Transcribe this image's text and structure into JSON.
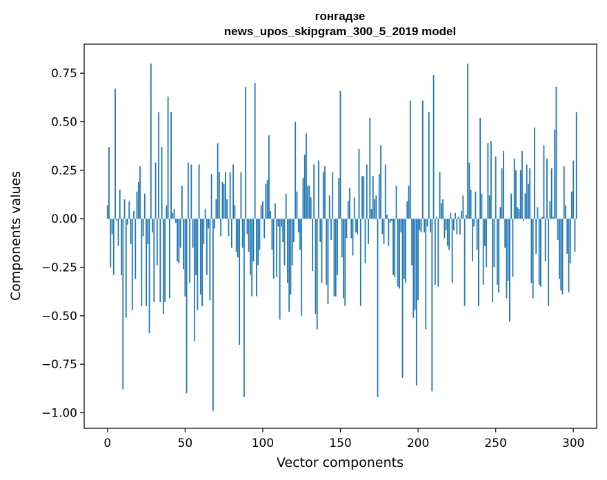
{
  "chart_data": {
    "type": "bar",
    "title_line1": "гонгадзе",
    "title_line2": "news_upos_skipgram_300_5_2019 model",
    "xlabel": "Vector components",
    "ylabel": "Components values",
    "xlim": [
      -15,
      315
    ],
    "ylim": [
      -1.08,
      0.9
    ],
    "xticks": [
      0,
      50,
      100,
      150,
      200,
      250,
      300
    ],
    "xtick_labels": [
      "0",
      "50",
      "100",
      "150",
      "200",
      "250",
      "300"
    ],
    "yticks": [
      -1.0,
      -0.75,
      -0.5,
      -0.25,
      0.0,
      0.25,
      0.5,
      0.75
    ],
    "ytick_labels": [
      "−1.00",
      "−0.75",
      "−0.50",
      "−0.25",
      "0.00",
      "0.25",
      "0.50",
      "0.75"
    ],
    "bar_color": "#1f77b4",
    "values": [
      0.07,
      0.37,
      -0.25,
      -0.08,
      -0.29,
      0.67,
      -0.01,
      -0.14,
      0.15,
      -0.29,
      -0.88,
      0.1,
      -0.51,
      -0.03,
      0.09,
      -0.13,
      -0.47,
      0.04,
      -0.31,
      0.14,
      0.19,
      0.27,
      -0.45,
      -0.09,
      0.13,
      -0.45,
      -0.13,
      -0.59,
      0.8,
      -0.07,
      -0.43,
      0.29,
      -0.24,
      0.55,
      -0.43,
      0.37,
      -0.49,
      -0.43,
      0.07,
      0.63,
      -0.41,
      0.55,
      0.03,
      0.05,
      -0.02,
      -0.22,
      -0.23,
      -0.15,
      0.17,
      -0.26,
      -0.4,
      -0.9,
      0.29,
      -0.33,
      0.28,
      -0.15,
      -0.63,
      -0.29,
      -0.47,
      0.28,
      -0.39,
      -0.45,
      -0.13,
      0.05,
      -0.29,
      -0.05,
      -0.42,
      0.23,
      -0.99,
      -0.05,
      0.1,
      0.39,
      0.24,
      -0.09,
      0.19,
      0.18,
      0.24,
      0.1,
      -0.09,
      0.24,
      -0.15,
      0.28,
      0.07,
      -0.17,
      -0.2,
      -0.65,
      0.24,
      -0.15,
      -0.92,
      0.68,
      -0.08,
      -0.17,
      -0.29,
      -0.4,
      -0.22,
      0.7,
      -0.4,
      -0.24,
      -0.16,
      0.07,
      0.09,
      -0.1,
      0.18,
      0.2,
      0.43,
      0.04,
      -0.16,
      -0.31,
      0.08,
      -0.3,
      -0.04,
      -0.52,
      -0.04,
      -0.12,
      -0.24,
      0.13,
      -0.33,
      -0.48,
      -0.39,
      -0.24,
      -0.12,
      0.5,
      0.14,
      -0.07,
      -0.16,
      -0.5,
      0.21,
      0.33,
      0.44,
      0.17,
      0.17,
      0.11,
      -0.27,
      0.28,
      -0.49,
      -0.57,
      0.3,
      -0.12,
      -0.33,
      0.24,
      0.27,
      -0.34,
      -0.44,
      0.12,
      -0.11,
      0.24,
      -0.4,
      -0.4,
      -0.29,
      0.21,
      0.66,
      -0.2,
      -0.41,
      -0.45,
      -0.1,
      0.09,
      0.16,
      -0.1,
      -0.19,
      0.11,
      -0.07,
      -0.08,
      0.36,
      -0.45,
      0.22,
      0.22,
      -0.23,
      0.28,
      -0.13,
      0.52,
      0.05,
      0.22,
      0.1,
      0.12,
      -0.92,
      0.23,
      0.38,
      -0.08,
      -0.13,
      0.28,
      0.02,
      -0.14,
      -0.02,
      -0.01,
      -0.29,
      -0.3,
      0.17,
      -0.35,
      -0.36,
      -0.07,
      -0.82,
      -0.31,
      -0.33,
      0.09,
      0.17,
      0.61,
      -0.24,
      -0.51,
      -0.47,
      -0.86,
      -0.42,
      -0.06,
      -0.07,
      0.61,
      -0.07,
      -0.57,
      -0.04,
      0.55,
      -0.07,
      -0.89,
      0.74,
      -0.34,
      0.01,
      -0.35,
      0.24,
      0.08,
      0.1,
      -0.1,
      -0.06,
      -0.14,
      -0.16,
      0.03,
      -0.33,
      -0.06,
      0.03,
      -0.08,
      0.01,
      -0.08,
      0.04,
      0.12,
      -0.45,
      0.02,
      0.8,
      0.29,
      0.15,
      -0.22,
      -0.04,
      0.14,
      -0.16,
      -0.45,
      0.52,
      0.13,
      -0.34,
      -0.14,
      -0.25,
      0.39,
      0.12,
      0.4,
      -0.43,
      -0.25,
      0.32,
      -0.34,
      -0.38,
      0.06,
      0.26,
      0.35,
      -0.15,
      -0.41,
      -0.32,
      -0.53,
      0.13,
      -0.3,
      0.31,
      0.25,
      0.06,
      0.05,
      0.25,
      0.35,
      -0.01,
      0.13,
      0.28,
      0.18,
      0.26,
      -0.33,
      -0.41,
      0.47,
      -0.18,
      0.06,
      -0.34,
      -0.35,
      0.01,
      0.38,
      -0.22,
      0.31,
      -0.45,
      0.09,
      0.26,
      0.01,
      0.46,
      0.68,
      -0.11,
      -0.31,
      -0.37,
      -0.39,
      0.27,
      0.07,
      -0.18,
      -0.38,
      -0.23,
      0.14,
      0.3,
      -0.17,
      0.55
    ]
  }
}
